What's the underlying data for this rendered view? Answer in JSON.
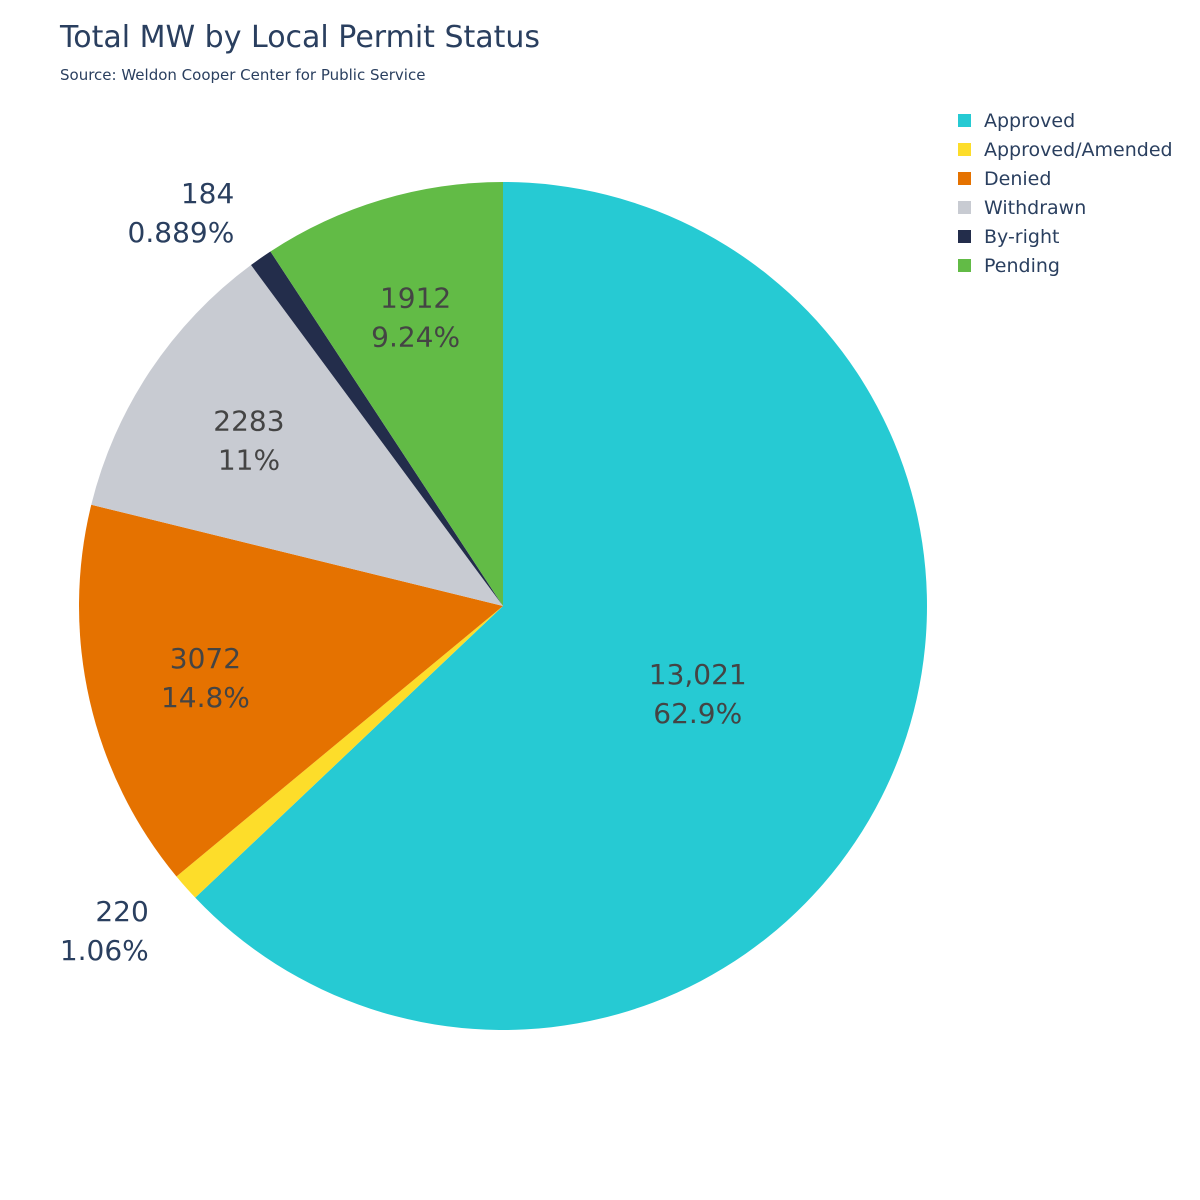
{
  "chart_data": {
    "type": "pie",
    "title": "Total MW by Local Permit Status",
    "subtitle": "Source: Weldon Cooper Center for Public Service",
    "legend_position": "top-right",
    "slices": [
      {
        "label": "Approved",
        "value": 13021,
        "value_text": "13,021",
        "percent_text": "62.9%",
        "color": "#26cad3",
        "label_placement": "inside"
      },
      {
        "label": "Approved/Amended",
        "value": 220,
        "value_text": "220",
        "percent_text": "1.06%",
        "color": "#fddd2a",
        "label_placement": "outside"
      },
      {
        "label": "Denied",
        "value": 3072,
        "value_text": "3072",
        "percent_text": "14.8%",
        "color": "#e57200",
        "label_placement": "inside"
      },
      {
        "label": "Withdrawn",
        "value": 2283,
        "value_text": "2283",
        "percent_text": "11%",
        "color": "#c8cbd2",
        "label_placement": "inside"
      },
      {
        "label": "By-right",
        "value": 184,
        "value_text": "184",
        "percent_text": "0.889%",
        "color": "#232d4b",
        "label_placement": "outside"
      },
      {
        "label": "Pending",
        "value": 1912,
        "value_text": "1912",
        "percent_text": "9.24%",
        "color": "#62bb46",
        "label_placement": "inside"
      }
    ]
  }
}
